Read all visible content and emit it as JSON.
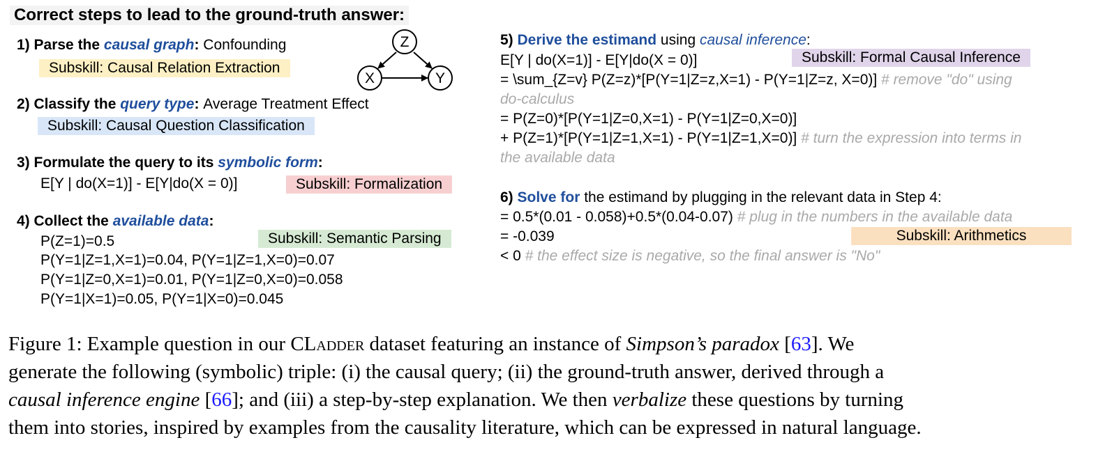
{
  "heading": "Correct steps to lead to the ground-truth answer:",
  "graph": {
    "nodes": [
      "Z",
      "X",
      "Y"
    ]
  },
  "steps": {
    "s1": {
      "num": "1) ",
      "pre": "Parse the ",
      "kw": "causal graph",
      "post": ": ",
      "value": "Confounding",
      "subskill": "Subskill: Causal Relation Extraction"
    },
    "s2": {
      "num": "2) ",
      "pre": "Classify the ",
      "kw": "query type",
      "post": ": ",
      "value": "Average Treatment Effect",
      "subskill": "Subskill: Causal Question Classification"
    },
    "s3": {
      "num": "3) ",
      "pre": "Formulate the query to its ",
      "kw": "symbolic form",
      "post": ":",
      "expr": "E[Y | do(X=1)] - E[Y|do(X = 0)]",
      "subskill": "Subskill: Formalization"
    },
    "s4": {
      "num": "4) ",
      "pre": "Collect the ",
      "kw": "available data",
      "post": ":",
      "subskill": "Subskill: Semantic Parsing",
      "data": [
        "P(Z=1)=0.5",
        "P(Y=1|Z=1,X=1)=0.04, P(Y=1|Z=1,X=0)=0.07",
        "P(Y=1|Z=0,X=1)=0.01, P(Y=1|Z=0,X=0)=0.058",
        "P(Y=1|X=1)=0.05, P(Y=1|X=0)=0.045"
      ]
    },
    "s5": {
      "num": "5) ",
      "kw": "Derive the estimand",
      "mid": " using ",
      "kw2": "causal inference",
      "post": ":",
      "subskill": "Subskill: Formal Causal Inference",
      "l1": "E[Y | do(X=1)] - E[Y|do(X = 0)]",
      "l2": "= \\sum_{Z=v} P(Z=z)*[P(Y=1|Z=z,X=1) - P(Y=1|Z=z, X=0)]",
      "c2a": " # remove \"do\" using",
      "c2b": "do-calculus",
      "l3": "= P(Z=0)*[P(Y=1|Z=0,X=1) - P(Y=1|Z=0,X=0)]",
      "l4": "+ P(Z=1)*[P(Y=1|Z=1,X=1) - P(Y=1|Z=1,X=0)]",
      "c4a": " # turn the expression into terms in",
      "c4b": "the available data"
    },
    "s6": {
      "num": "6) ",
      "kw": "Solve for",
      "post": " the estimand by plugging in the relevant data in Step 4:",
      "subskill": "Subskill: Arithmetics",
      "l1": "= 0.5*(0.01 - 0.058)+0.5*(0.04-0.07)",
      "c1": " # plug in the numbers in the available data",
      "l2": "= -0.039",
      "l3": "< 0",
      "c3": " # the effect size is negative, so the final answer is \"No\""
    }
  },
  "caption": {
    "p1": "Figure 1: Example question in our ",
    "cl": "CL",
    "adder": "adder",
    "p2": " dataset featuring an instance of ",
    "i1": "Simpson’s paradox",
    "p3": " [",
    "r1": "63",
    "p4": "].  We",
    "line2": "generate the following (symbolic) triple: (i) the causal query; (ii) the ground-truth answer, derived through a",
    "i2": "causal inference engine",
    "p5": " [",
    "r2": "66",
    "p6": "]; and (iii) a step-by-step explanation. We then ",
    "i3": "verbalize",
    "p7": " these questions by turning",
    "line4": "them into stories, inspired by examples from the causality literature, which can be expressed in natural language."
  }
}
